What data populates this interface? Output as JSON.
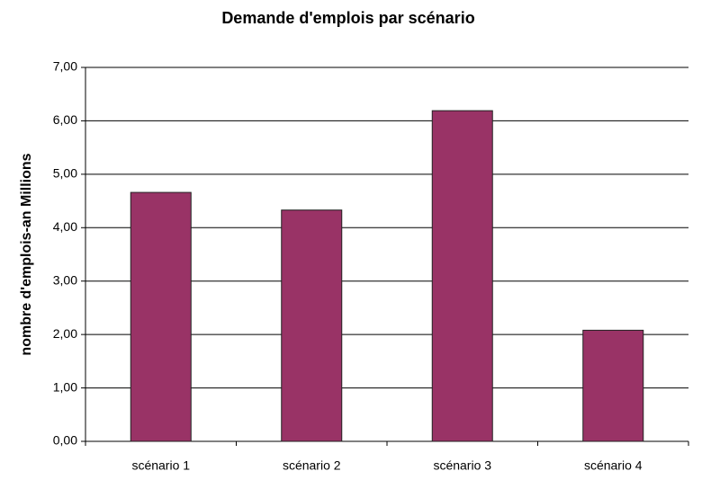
{
  "chart_data": {
    "type": "bar",
    "title": "Demande d'emplois par scénario",
    "y_label": "nombre d'emplois-an Millions",
    "categories": [
      "scénario 1",
      "scénario 2",
      "scénario 3",
      "scénario 4"
    ],
    "values": [
      4.66,
      4.33,
      6.19,
      2.08
    ],
    "color": "#993366",
    "ylim": [
      0,
      7
    ],
    "yticks": [
      {
        "value": 0,
        "label": "0,00"
      },
      {
        "value": 1,
        "label": "1,00"
      },
      {
        "value": 2,
        "label": "2,00"
      },
      {
        "value": 3,
        "label": "3,00"
      },
      {
        "value": 4,
        "label": "4,00"
      },
      {
        "value": 5,
        "label": "5,00"
      },
      {
        "value": 6,
        "label": "6,00"
      },
      {
        "value": 7,
        "label": "7,00"
      }
    ],
    "grid": true
  }
}
